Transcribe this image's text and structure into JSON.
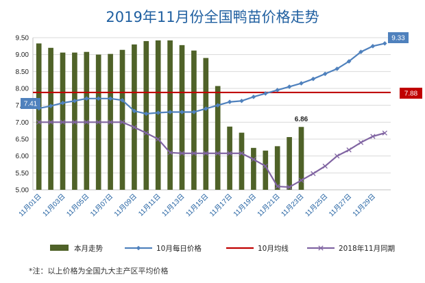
{
  "chart_data": {
    "type": "bar+line",
    "title": "2019年11月份全国鸭苗价格走势",
    "categories": [
      "11月01日",
      "11月02日",
      "11月03日",
      "11月04日",
      "11月05日",
      "11月06日",
      "11月07日",
      "11月08日",
      "11月09日",
      "11月10日",
      "11月11日",
      "11月12日",
      "11月13日",
      "11月14日",
      "11月15日",
      "11月16日",
      "11月17日",
      "11月18日",
      "11月19日",
      "11月20日",
      "11月21日",
      "11月22日",
      "11月23日",
      "11月24日",
      "11月25日",
      "11月26日",
      "11月27日",
      "11月28日",
      "11月29日",
      "11月30日"
    ],
    "tick_labels": [
      "11月01日",
      "11月03日",
      "11月05日",
      "11月07日",
      "11月09日",
      "11月11日",
      "11月13日",
      "11月15日",
      "11月17日",
      "11月19日",
      "11月21日",
      "11月23日",
      "11月25日",
      "11月27日",
      "11月29日"
    ],
    "ylim": [
      5.0,
      9.5
    ],
    "yticks": [
      "5.00",
      "5.50",
      "6.00",
      "6.50",
      "7.00",
      "7.50",
      "8.00",
      "8.50",
      "9.00",
      "9.50"
    ],
    "series": [
      {
        "name": "本月走势",
        "type": "bar",
        "color": "#4f6228",
        "values": [
          9.33,
          9.2,
          9.06,
          9.06,
          9.08,
          9.0,
          9.02,
          9.14,
          9.3,
          9.4,
          9.42,
          9.42,
          9.28,
          9.12,
          8.9,
          8.07,
          6.87,
          6.69,
          6.24,
          6.16,
          6.29,
          6.56,
          6.86,
          null,
          null,
          null,
          null,
          null,
          null,
          null
        ]
      },
      {
        "name": "10月每日价格",
        "type": "line",
        "color": "#4f81bd",
        "marker": "diamond",
        "values": [
          7.41,
          7.48,
          7.57,
          7.63,
          7.7,
          7.7,
          7.7,
          7.65,
          7.33,
          7.25,
          7.28,
          7.3,
          7.3,
          7.3,
          7.4,
          7.5,
          7.6,
          7.63,
          7.75,
          7.85,
          7.95,
          8.05,
          8.15,
          8.28,
          8.43,
          8.58,
          8.8,
          9.08,
          9.25,
          9.33
        ]
      },
      {
        "name": "10月均线",
        "type": "line",
        "color": "#c00000",
        "values_constant": 7.88
      },
      {
        "name": "2018年11月同期",
        "type": "line",
        "color": "#8064a2",
        "marker": "x",
        "values": [
          7.0,
          7.0,
          7.0,
          7.0,
          7.0,
          7.0,
          7.0,
          7.0,
          6.85,
          6.68,
          6.5,
          6.1,
          6.08,
          6.08,
          6.08,
          6.08,
          6.08,
          6.08,
          5.9,
          5.7,
          5.1,
          5.08,
          5.28,
          5.48,
          5.7,
          6.0,
          6.18,
          6.4,
          6.58,
          6.68
        ]
      }
    ],
    "data_labels": {
      "first": "7.41",
      "last": "9.33",
      "avg": "7.88",
      "bar_last": "6.86"
    },
    "legend_position": "bottom",
    "grid": true
  },
  "footnote": "*注：以上价格为全国九大主产区平均价格"
}
